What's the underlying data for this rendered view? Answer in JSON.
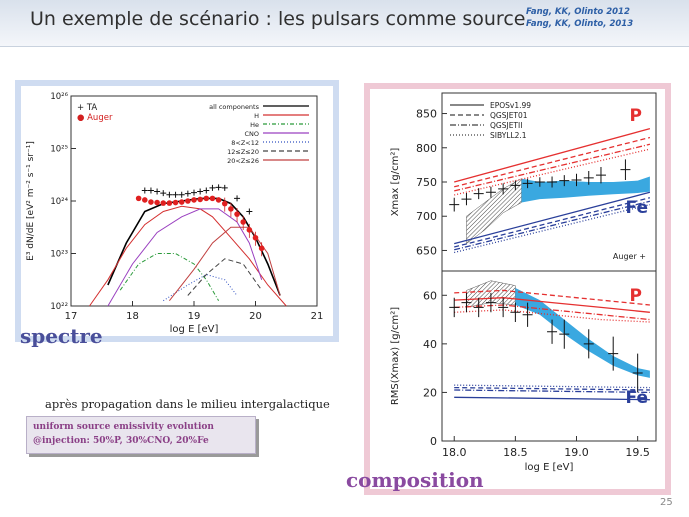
{
  "slide": {
    "title": "Un exemple de scénario : les pulsars comme source",
    "refs": [
      "Fang, KK, Olinto 2012",
      "Fang, KK, Olinto, 2013"
    ],
    "label_spectre": "spectre",
    "label_composition": "composition",
    "caption": "après propagation dans le milieu intergalactique",
    "box_lines": [
      "uniform source emissivity evolution",
      "@injection: 50%P, 30%CNO, 20%Fe"
    ],
    "page_number": "25"
  },
  "colors": {
    "P": "#e53030",
    "Fe": "#2a3f9a",
    "band": "#3aa8e0"
  },
  "chart_data": [
    {
      "type": "line",
      "xlabel": "log E [eV]",
      "ylabel": "E³ dN/dE [eV² m⁻² s⁻¹ sr⁻¹]",
      "xlim": [
        17,
        21
      ],
      "ylim_log10": [
        22,
        26
      ],
      "xticks": [
        "17",
        "18",
        "19",
        "20",
        "21"
      ],
      "yticks": [
        "10²²",
        "10²³",
        "10²⁴",
        "10²⁵",
        "10²⁶"
      ],
      "legend_data": [
        "+ TA",
        "● Auger"
      ],
      "legend_models": [
        {
          "label": "all components",
          "color": "#000000",
          "dash": ""
        },
        {
          "label": "H",
          "color": "#d43030",
          "dash": ""
        },
        {
          "label": "He",
          "color": "#2a9a3a",
          "dash": "4,2,1,2"
        },
        {
          "label": "CNO",
          "color": "#9a40c0",
          "dash": ""
        },
        {
          "label": "8<Z<12",
          "color": "#3050c0",
          "dash": "1,2"
        },
        {
          "label": "12≤Z≤20",
          "color": "#444444",
          "dash": "5,3"
        },
        {
          "label": "20<Z≤26",
          "color": "#c04040",
          "dash": ""
        }
      ],
      "series": [
        {
          "name": "TA",
          "marker": "+",
          "x": [
            18.2,
            18.3,
            18.4,
            18.5,
            18.6,
            18.7,
            18.8,
            18.9,
            19.0,
            19.1,
            19.2,
            19.3,
            19.4,
            19.5,
            19.7,
            19.9
          ],
          "y": [
            24.2,
            24.2,
            24.18,
            24.15,
            24.12,
            24.12,
            24.12,
            24.14,
            24.16,
            24.18,
            24.2,
            24.25,
            24.26,
            24.25,
            24.05,
            23.8
          ]
        },
        {
          "name": "Auger",
          "marker": "●",
          "x": [
            18.1,
            18.2,
            18.3,
            18.4,
            18.5,
            18.6,
            18.7,
            18.8,
            18.9,
            19.0,
            19.1,
            19.2,
            19.3,
            19.4,
            19.5,
            19.6,
            19.7,
            19.8,
            19.9,
            20.0,
            20.1
          ],
          "y": [
            24.05,
            24.02,
            23.98,
            23.97,
            23.96,
            23.96,
            23.97,
            23.98,
            24.0,
            24.02,
            24.03,
            24.05,
            24.05,
            24.02,
            23.95,
            23.85,
            23.75,
            23.6,
            23.45,
            23.3,
            23.1
          ]
        },
        {
          "name": "all components",
          "x": [
            17.6,
            17.9,
            18.2,
            18.5,
            18.8,
            19.1,
            19.4,
            19.6,
            19.8,
            20.0,
            20.2,
            20.4
          ],
          "y": [
            22.4,
            23.2,
            23.8,
            23.95,
            24.0,
            24.05,
            24.05,
            23.95,
            23.7,
            23.3,
            22.8,
            22.2
          ]
        },
        {
          "name": "H",
          "x": [
            17.3,
            17.6,
            17.9,
            18.2,
            18.5,
            18.8,
            19.1,
            19.3,
            19.6,
            19.9,
            20.2,
            20.5
          ],
          "y": [
            22.0,
            22.5,
            23.1,
            23.55,
            23.8,
            23.9,
            23.85,
            23.7,
            23.3,
            22.9,
            22.4,
            22.0
          ]
        },
        {
          "name": "He",
          "x": [
            17.8,
            18.1,
            18.4,
            18.7,
            19.0,
            19.2,
            19.4
          ],
          "y": [
            22.3,
            22.8,
            23.0,
            23.0,
            22.8,
            22.5,
            22.1
          ]
        },
        {
          "name": "CNO",
          "x": [
            17.6,
            18.0,
            18.4,
            18.8,
            19.1,
            19.4,
            19.7,
            19.9,
            20.1
          ],
          "y": [
            22.0,
            22.8,
            23.4,
            23.7,
            23.85,
            23.85,
            23.6,
            23.2,
            22.5
          ]
        },
        {
          "name": "8<Z<12",
          "x": [
            18.5,
            18.9,
            19.2,
            19.5,
            19.7
          ],
          "y": [
            22.1,
            22.4,
            22.6,
            22.5,
            22.2
          ]
        },
        {
          "name": "12≤Z≤20",
          "x": [
            18.9,
            19.2,
            19.5,
            19.8,
            20.1
          ],
          "y": [
            22.2,
            22.6,
            22.9,
            22.8,
            22.3
          ]
        },
        {
          "name": "20<Z≤26",
          "x": [
            18.6,
            19.0,
            19.3,
            19.6,
            19.9,
            20.2,
            20.4
          ],
          "y": [
            22.1,
            22.7,
            23.2,
            23.5,
            23.5,
            23.0,
            22.2
          ]
        }
      ]
    },
    {
      "type": "line",
      "ylabel": "Xmax [g/cm²]",
      "xlim": [
        17.9,
        19.65
      ],
      "ylim": [
        620,
        880
      ],
      "yticks": [
        "650",
        "700",
        "750",
        "800",
        "850"
      ],
      "legend_models": [
        {
          "label": "EPOSv1.99",
          "dash": ""
        },
        {
          "label": "QGSJET01",
          "dash": "5,3"
        },
        {
          "label": "QGSJETII",
          "dash": "6,2,1,2"
        },
        {
          "label": "SIBYLL2.1",
          "dash": "1,2"
        }
      ],
      "annotation_P": "P",
      "annotation_Fe": "Fe",
      "data_label": "Auger +",
      "P_lines": [
        {
          "dash": "",
          "x": [
            18.0,
            19.6
          ],
          "y": [
            750,
            828
          ]
        },
        {
          "dash": "5,3",
          "x": [
            18.0,
            19.6
          ],
          "y": [
            743,
            815
          ]
        },
        {
          "dash": "6,2,1,2",
          "x": [
            18.0,
            19.6
          ],
          "y": [
            737,
            805
          ]
        },
        {
          "dash": "1,2",
          "x": [
            18.0,
            19.6
          ],
          "y": [
            731,
            798
          ]
        }
      ],
      "Fe_lines": [
        {
          "dash": "",
          "x": [
            18.0,
            19.6
          ],
          "y": [
            660,
            735
          ]
        },
        {
          "dash": "5,3",
          "x": [
            18.0,
            19.6
          ],
          "y": [
            655,
            727
          ]
        },
        {
          "dash": "6,2,1,2",
          "x": [
            18.0,
            19.6
          ],
          "y": [
            651,
            722
          ]
        },
        {
          "dash": "1,2",
          "x": [
            18.0,
            19.6
          ],
          "y": [
            647,
            717
          ]
        }
      ],
      "band_hatched": {
        "x": [
          18.1,
          18.25,
          18.4,
          18.55
        ],
        "lower": [
          660,
          680,
          705,
          720
        ],
        "upper": [
          700,
          720,
          740,
          755
        ]
      },
      "band_blue": {
        "x": [
          18.55,
          18.7,
          18.9,
          19.1,
          19.3,
          19.5,
          19.6
        ],
        "lower": [
          720,
          725,
          727,
          730,
          732,
          734,
          736
        ],
        "upper": [
          755,
          750,
          752,
          750,
          750,
          752,
          758
        ]
      },
      "points": {
        "x": [
          18.0,
          18.1,
          18.2,
          18.3,
          18.4,
          18.5,
          18.6,
          18.7,
          18.8,
          18.9,
          19.0,
          19.1,
          19.2,
          19.4
        ],
        "y": [
          717,
          725,
          733,
          735,
          740,
          745,
          748,
          750,
          750,
          752,
          753,
          756,
          760,
          768
        ],
        "err": [
          10,
          9,
          8,
          8,
          8,
          7,
          7,
          7,
          8,
          8,
          9,
          10,
          12,
          15
        ]
      }
    },
    {
      "type": "line",
      "xlabel": "log E [eV]",
      "ylabel": "RMS(Xmax) [g/cm²]",
      "xlim": [
        17.9,
        19.65
      ],
      "ylim": [
        0,
        70
      ],
      "xticks": [
        "18.0",
        "18.5",
        "19.0",
        "19.5"
      ],
      "yticks": [
        "0",
        "20",
        "40",
        "60"
      ],
      "annotation_P": "P",
      "annotation_Fe": "Fe",
      "P_lines": [
        {
          "dash": "",
          "x": [
            18.0,
            18.4,
            18.8,
            19.2,
            19.6
          ],
          "y": [
            58,
            59,
            57,
            55,
            53
          ]
        },
        {
          "dash": "5,3",
          "x": [
            18.0,
            18.4,
            18.8,
            19.2,
            19.6
          ],
          "y": [
            61,
            62,
            60,
            58,
            56
          ]
        },
        {
          "dash": "6,2,1,2",
          "x": [
            18.0,
            18.4,
            18.8,
            19.2,
            19.6
          ],
          "y": [
            55,
            56,
            54,
            52,
            50
          ]
        },
        {
          "dash": "1,2",
          "x": [
            18.0,
            18.4,
            18.8,
            19.2,
            19.6
          ],
          "y": [
            53,
            54,
            52,
            50,
            49
          ]
        }
      ],
      "Fe_lines": [
        {
          "dash": "",
          "x": [
            18.0,
            19.6
          ],
          "y": [
            18,
            17
          ]
        },
        {
          "dash": "5,3",
          "x": [
            18.0,
            19.6
          ],
          "y": [
            22,
            21
          ]
        },
        {
          "dash": "6,2,1,2",
          "x": [
            18.0,
            19.6
          ],
          "y": [
            21,
            20
          ]
        },
        {
          "dash": "1,2",
          "x": [
            18.0,
            19.6
          ],
          "y": [
            23,
            22
          ]
        }
      ],
      "band_hatched": {
        "x": [
          18.1,
          18.3,
          18.5
        ],
        "lower": [
          55,
          57,
          56
        ],
        "upper": [
          62,
          66,
          64
        ]
      },
      "band_blue": {
        "x": [
          18.5,
          18.7,
          18.9,
          19.1,
          19.3,
          19.5,
          19.6
        ],
        "lower": [
          56,
          52,
          44,
          37,
          31,
          27,
          26
        ],
        "upper": [
          63,
          58,
          50,
          42,
          35,
          30,
          29
        ]
      },
      "points": {
        "x": [
          18.0,
          18.1,
          18.2,
          18.3,
          18.4,
          18.5,
          18.6,
          18.8,
          18.9,
          19.1,
          19.3,
          19.5
        ],
        "y": [
          55,
          57,
          55,
          57,
          55,
          53,
          52,
          45,
          44,
          40,
          36,
          28
        ],
        "err": [
          4,
          4,
          4,
          4,
          4,
          4,
          5,
          5,
          6,
          6,
          7,
          8
        ]
      }
    }
  ]
}
